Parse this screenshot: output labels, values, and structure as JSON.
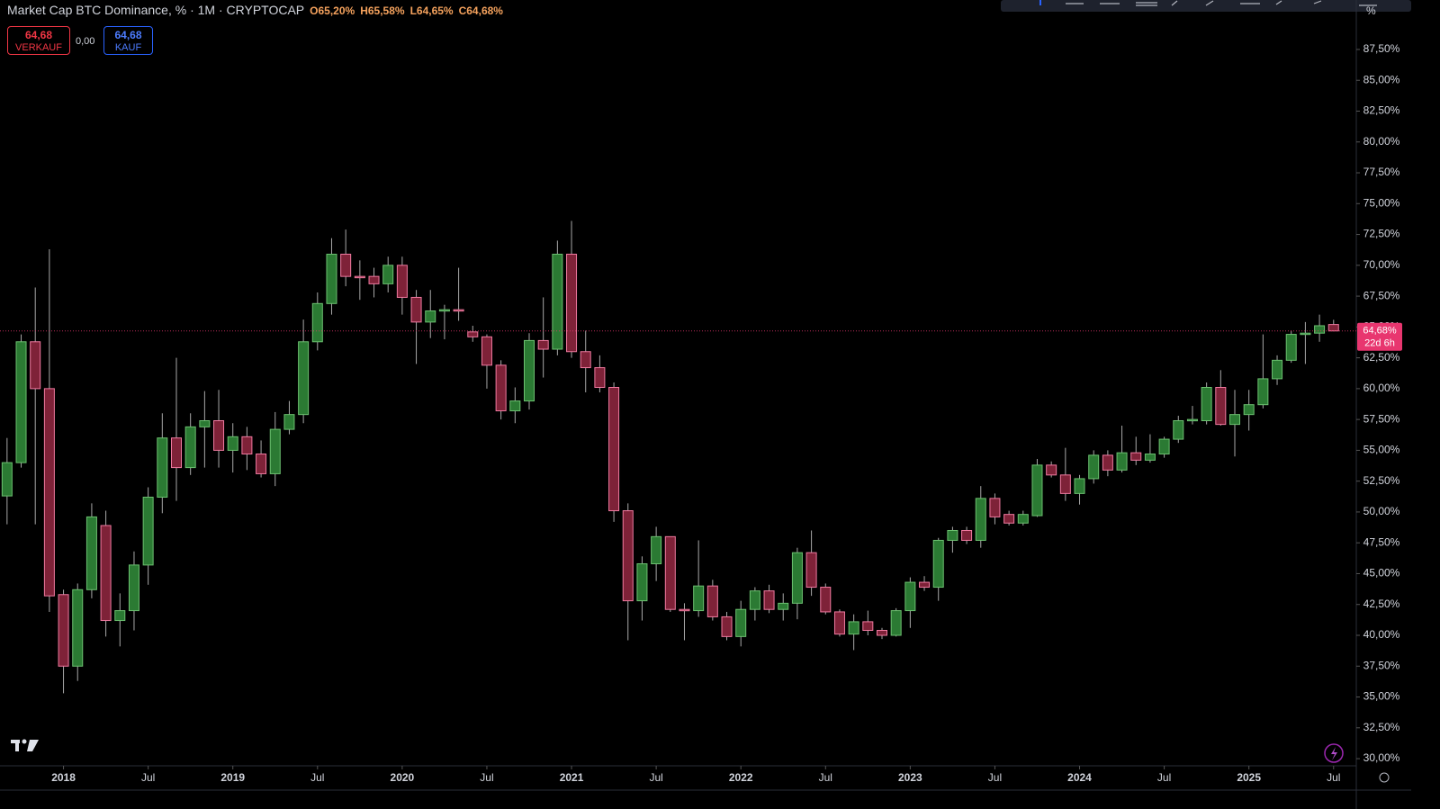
{
  "header": {
    "title": "Market Cap BTC Dominance, % · 1M · CRYPTOCAP",
    "ohlc": [
      "O65,20%",
      "H65,58%",
      "L64,65%",
      "C64,68%"
    ],
    "sell": {
      "price": "64,68",
      "label": "VERKAUF"
    },
    "spread": "0,00",
    "buy": {
      "price": "64,68",
      "label": "KAUF"
    },
    "scale_mode": "%"
  },
  "chart_data": {
    "type": "candlestick",
    "x": [
      "2017-09",
      "2017-10",
      "2017-11",
      "2017-12",
      "2018-01",
      "2018-02",
      "2018-03",
      "2018-04",
      "2018-05",
      "2018-06",
      "2018-07",
      "2018-08",
      "2018-09",
      "2018-10",
      "2018-11",
      "2018-12",
      "2019-01",
      "2019-02",
      "2019-03",
      "2019-04",
      "2019-05",
      "2019-06",
      "2019-07",
      "2019-08",
      "2019-09",
      "2019-10",
      "2019-11",
      "2019-12",
      "2020-01",
      "2020-02",
      "2020-03",
      "2020-04",
      "2020-05",
      "2020-06",
      "2020-07",
      "2020-08",
      "2020-09",
      "2020-10",
      "2020-11",
      "2020-12",
      "2021-01",
      "2021-02",
      "2021-03",
      "2021-04",
      "2021-05",
      "2021-06",
      "2021-07",
      "2021-08",
      "2021-09",
      "2021-10",
      "2021-11",
      "2021-12",
      "2022-01",
      "2022-02",
      "2022-03",
      "2022-04",
      "2022-05",
      "2022-06",
      "2022-07",
      "2022-08",
      "2022-09",
      "2022-10",
      "2022-11",
      "2022-12",
      "2023-01",
      "2023-02",
      "2023-03",
      "2023-04",
      "2023-05",
      "2023-06",
      "2023-07",
      "2023-08",
      "2023-09",
      "2023-10",
      "2023-11",
      "2023-12",
      "2024-01",
      "2024-02",
      "2024-03",
      "2024-04",
      "2024-05",
      "2024-06",
      "2024-07",
      "2024-08",
      "2024-09",
      "2024-10",
      "2024-11",
      "2024-12",
      "2025-01",
      "2025-02",
      "2025-03",
      "2025-04",
      "2025-05",
      "2025-06",
      "2025-07"
    ],
    "open": [
      51.3,
      54,
      63.8,
      60,
      43.3,
      37.5,
      43.7,
      48.9,
      41.2,
      42,
      45.7,
      51.2,
      56,
      53.6,
      56.9,
      57.4,
      55,
      56.1,
      54.7,
      53.1,
      56.7,
      57.9,
      63.8,
      66.9,
      70.9,
      69.1,
      69.1,
      68.5,
      70,
      67.4,
      65.4,
      66.3,
      66.4,
      64.6,
      64.2,
      61.9,
      58.2,
      59,
      63.9,
      63.2,
      70.9,
      63,
      61.7,
      60.1,
      50.1,
      42.8,
      45.8,
      48,
      42.1,
      42,
      44,
      41.5,
      39.9,
      42.1,
      43.6,
      42.1,
      42.6,
      46.7,
      43.9,
      41.9,
      40.1,
      41.1,
      40.4,
      40,
      42,
      44.3,
      43.9,
      47.7,
      48.5,
      47.7,
      51.1,
      49.8,
      49.1,
      49.7,
      53.8,
      53,
      51.5,
      52.7,
      54.6,
      53.4,
      54.8,
      54.2,
      54.7,
      55.9,
      57.4,
      57.4,
      60.1,
      57.1,
      57.9,
      58.7,
      60.8,
      62.3,
      64.4,
      64.5,
      65.2
    ],
    "high": [
      56,
      64.4,
      68.2,
      71.3,
      43.7,
      44.2,
      50.7,
      50.1,
      43.4,
      46.8,
      52,
      58,
      62.5,
      58,
      59.8,
      59.9,
      57.2,
      56.9,
      55.8,
      58.1,
      59,
      65.6,
      67.8,
      72.2,
      72.9,
      70.4,
      69.8,
      70.7,
      70.7,
      68,
      68,
      66.8,
      69.8,
      65.1,
      64.4,
      62.3,
      60.1,
      64.5,
      67.4,
      72,
      73.6,
      64.7,
      62.7,
      60.5,
      50.7,
      46.4,
      48.8,
      48,
      42.6,
      47.7,
      44.5,
      41.9,
      42.8,
      43.9,
      44.1,
      43.4,
      47.1,
      48.5,
      44.2,
      42.1,
      41.7,
      42,
      40.6,
      42.2,
      44.7,
      44.8,
      47.9,
      48.8,
      48.8,
      52.1,
      51.5,
      50.1,
      50.1,
      54.3,
      54.1,
      55.2,
      53,
      55,
      55,
      57,
      56.1,
      56.3,
      56.1,
      57.8,
      58.6,
      60.5,
      61.5,
      59.9,
      59.9,
      64.4,
      62.7,
      64.7,
      65.4,
      66,
      65.58
    ],
    "low": [
      49,
      53.6,
      49,
      41.9,
      35.3,
      36.3,
      43,
      39.9,
      39.1,
      40.4,
      44.1,
      49.9,
      50.9,
      53,
      53.6,
      53.6,
      53.2,
      53.4,
      52.8,
      52.1,
      56.3,
      57.2,
      63.1,
      66,
      68.3,
      67.2,
      67.4,
      67.8,
      66,
      62,
      64.1,
      64,
      65.5,
      63.8,
      60,
      57.5,
      57.2,
      58.3,
      60.9,
      62.7,
      62.5,
      59.7,
      59.7,
      49.2,
      39.6,
      41.2,
      44.4,
      41.9,
      39.6,
      41.5,
      41.2,
      39.6,
      39.1,
      41.2,
      41.8,
      41.2,
      41.3,
      43.2,
      41.7,
      39.9,
      38.8,
      40,
      39.7,
      39.9,
      40.6,
      43.6,
      42.8,
      46.7,
      47.4,
      47.1,
      49,
      48.9,
      48.9,
      49.6,
      52.8,
      50.9,
      50.6,
      52.3,
      52.9,
      53.2,
      53.8,
      54,
      54.4,
      55.6,
      57.1,
      57.1,
      57,
      54.5,
      56.6,
      58.4,
      60.3,
      62.1,
      62,
      63.8,
      64.65
    ],
    "close": [
      54,
      63.8,
      60,
      43.2,
      37.5,
      43.7,
      49.6,
      41.2,
      42,
      45.7,
      51.2,
      56,
      53.6,
      56.9,
      57.4,
      55,
      56.1,
      54.7,
      53.1,
      56.7,
      57.9,
      63.8,
      66.9,
      70.9,
      69.1,
      69,
      68.5,
      70,
      67.4,
      65.4,
      66.3,
      66.4,
      66.3,
      64.2,
      61.9,
      58.2,
      59,
      63.9,
      63.2,
      70.9,
      63,
      61.7,
      60.1,
      50.1,
      42.8,
      45.8,
      48,
      42.1,
      42,
      44,
      41.5,
      39.9,
      42.1,
      43.6,
      42.1,
      42.6,
      46.7,
      43.9,
      41.9,
      40.1,
      41.1,
      40.4,
      40,
      42,
      44.3,
      43.9,
      47.7,
      48.5,
      47.7,
      51.1,
      49.6,
      49.1,
      49.8,
      53.8,
      53,
      51.5,
      52.7,
      54.6,
      53.4,
      54.8,
      54.2,
      54.7,
      55.9,
      57.4,
      57.5,
      60.1,
      57.1,
      57.9,
      58.7,
      60.8,
      62.3,
      64.4,
      64.5,
      65.1,
      64.68
    ],
    "up_color": "#2b7a33",
    "up_border": "#6cc070",
    "down_color": "#7e2238",
    "down_border": "#f07aa0",
    "wick_color": "#a8a8a8",
    "ylim": [
      29.42,
      91.51
    ],
    "yticks": [
      {
        "value": 30,
        "label": "30,00%"
      },
      {
        "value": 32.5,
        "label": "32,50%"
      },
      {
        "value": 35,
        "label": "35,00%"
      },
      {
        "value": 37.5,
        "label": "37,50%"
      },
      {
        "value": 40,
        "label": "40,00%"
      },
      {
        "value": 42.5,
        "label": "42,50%"
      },
      {
        "value": 45,
        "label": "45,00%"
      },
      {
        "value": 47.5,
        "label": "47,50%"
      },
      {
        "value": 50,
        "label": "50,00%"
      },
      {
        "value": 52.5,
        "label": "52,50%"
      },
      {
        "value": 55,
        "label": "55,00%"
      },
      {
        "value": 57.5,
        "label": "57,50%"
      },
      {
        "value": 60,
        "label": "60,00%"
      },
      {
        "value": 62.5,
        "label": "62,50%"
      },
      {
        "value": 65,
        "label": "65,00%"
      },
      {
        "value": 67.5,
        "label": "67,50%"
      },
      {
        "value": 70,
        "label": "70,00%"
      },
      {
        "value": 72.5,
        "label": "72,50%"
      },
      {
        "value": 75,
        "label": "75,00%"
      },
      {
        "value": 77.5,
        "label": "77,50%"
      },
      {
        "value": 80,
        "label": "80,00%"
      },
      {
        "value": 82.5,
        "label": "82,50%"
      },
      {
        "value": 85,
        "label": "85,00%"
      },
      {
        "value": 87.5,
        "label": "87,50%"
      }
    ],
    "xticks": [
      {
        "value": "2018-01",
        "label": "2018"
      },
      {
        "value": "2018-07",
        "label": "Jul"
      },
      {
        "value": "2019-01",
        "label": "2019"
      },
      {
        "value": "2019-07",
        "label": "Jul"
      },
      {
        "value": "2020-01",
        "label": "2020"
      },
      {
        "value": "2020-07",
        "label": "Jul"
      },
      {
        "value": "2021-01",
        "label": "2021"
      },
      {
        "value": "2021-07",
        "label": "Jul"
      },
      {
        "value": "2022-01",
        "label": "2022"
      },
      {
        "value": "2022-07",
        "label": "Jul"
      },
      {
        "value": "2023-01",
        "label": "2023"
      },
      {
        "value": "2023-07",
        "label": "Jul"
      },
      {
        "value": "2024-01",
        "label": "2024"
      },
      {
        "value": "2024-07",
        "label": "Jul"
      },
      {
        "value": "2025-01",
        "label": "2025"
      },
      {
        "value": "2025-07",
        "label": "Jul"
      }
    ],
    "grid": false,
    "last_price": {
      "value": 64.68,
      "label": "64,68%",
      "color": "#e8366f"
    },
    "countdown": "22d 6h"
  }
}
